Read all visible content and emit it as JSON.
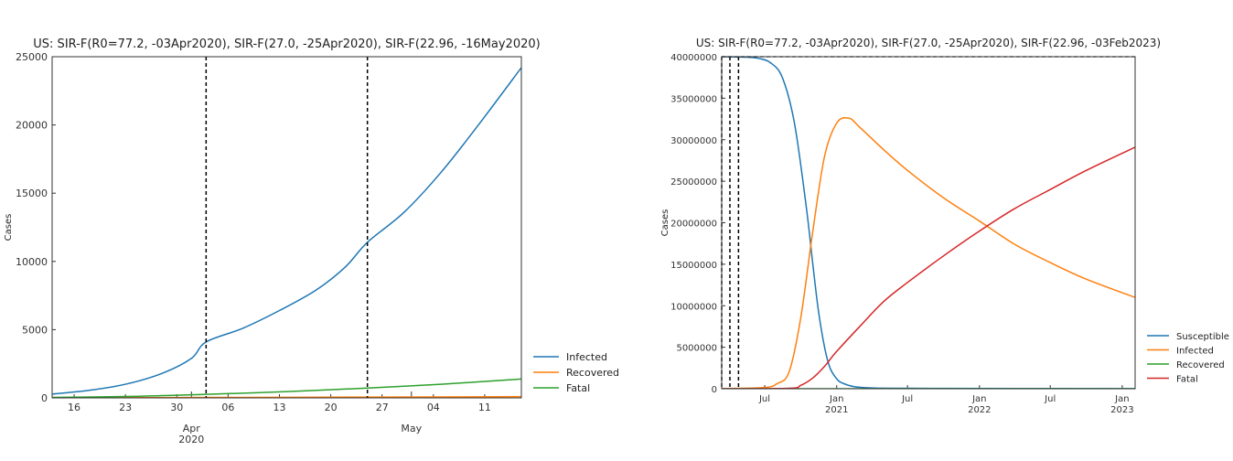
{
  "chart_data": [
    {
      "type": "line",
      "title": "US: SIR-F(R0=77.2, -03Apr2020), SIR-F(27.0, -25Apr2020), SIR-F(22.96, -16May2020)",
      "xlabel": "",
      "ylabel": "Cases",
      "ylim": [
        0,
        25000
      ],
      "y_ticks": [
        0,
        5000,
        10000,
        15000,
        20000,
        25000
      ],
      "y_tick_labels": [
        "0",
        "5000",
        "10000",
        "15000",
        "20000",
        "25000"
      ],
      "x_range": [
        "2020-03-13",
        "2020-05-16"
      ],
      "x_ticks": [
        {
          "date": "2020-03-16",
          "label": "16",
          "sublabel": ""
        },
        {
          "date": "2020-03-23",
          "label": "23",
          "sublabel": ""
        },
        {
          "date": "2020-03-30",
          "label": "30",
          "sublabel": ""
        },
        {
          "date": "2020-04-06",
          "label": "06",
          "sublabel": ""
        },
        {
          "date": "2020-04-13",
          "label": "13",
          "sublabel": ""
        },
        {
          "date": "2020-04-20",
          "label": "20",
          "sublabel": ""
        },
        {
          "date": "2020-04-27",
          "label": "27",
          "sublabel": ""
        },
        {
          "date": "2020-05-04",
          "label": "04",
          "sublabel": ""
        },
        {
          "date": "2020-05-11",
          "label": "11",
          "sublabel": ""
        }
      ],
      "x_month_labels": [
        {
          "date": "2020-04-01",
          "label": "Apr",
          "sublabel": "2020"
        },
        {
          "date": "2020-05-01",
          "label": "May",
          "sublabel": ""
        }
      ],
      "vlines": [
        "2020-04-03",
        "2020-04-25"
      ],
      "hlines": [],
      "grid": false,
      "legend_position": "lower-right-outside",
      "series": [
        {
          "name": "Infected",
          "color": "#1f77b4",
          "x": [
            "2020-03-13",
            "2020-03-18",
            "2020-03-23",
            "2020-03-28",
            "2020-04-01",
            "2020-04-03",
            "2020-04-08",
            "2020-04-13",
            "2020-04-18",
            "2020-04-22",
            "2020-04-25",
            "2020-04-30",
            "2020-05-05",
            "2020-05-10",
            "2020-05-16"
          ],
          "y": [
            280,
            550,
            1000,
            1800,
            2900,
            4100,
            5100,
            6400,
            7900,
            9600,
            11400,
            13600,
            16500,
            19900,
            24200
          ]
        },
        {
          "name": "Recovered",
          "color": "#ff7f0e",
          "x": [
            "2020-03-13",
            "2020-04-03",
            "2020-04-25",
            "2020-05-16"
          ],
          "y": [
            5,
            30,
            60,
            90
          ]
        },
        {
          "name": "Fatal",
          "color": "#2ca02c",
          "x": [
            "2020-03-13",
            "2020-03-25",
            "2020-04-03",
            "2020-04-14",
            "2020-04-25",
            "2020-05-05",
            "2020-05-16"
          ],
          "y": [
            30,
            120,
            260,
            460,
            720,
            1000,
            1380
          ]
        }
      ]
    },
    {
      "type": "line",
      "title": "US: SIR-F(R0=77.2, -03Apr2020), SIR-F(27.0, -25Apr2020), SIR-F(22.96, -03Feb2023)",
      "xlabel": "",
      "ylabel": "Cases",
      "ylim": [
        0,
        40000000
      ],
      "y_ticks": [
        0,
        5000000,
        10000000,
        15000000,
        20000000,
        25000000,
        30000000,
        35000000,
        40000000
      ],
      "y_tick_labels": [
        "0",
        "5000000",
        "10000000",
        "15000000",
        "20000000",
        "25000000",
        "30000000",
        "35000000",
        "40000000"
      ],
      "x_range": [
        "2020-03-13",
        "2023-02-03"
      ],
      "x_ticks": [
        {
          "date": "2020-07-01",
          "label": "Jul",
          "sublabel": ""
        },
        {
          "date": "2021-01-01",
          "label": "Jan",
          "sublabel": "2021"
        },
        {
          "date": "2021-07-01",
          "label": "Jul",
          "sublabel": ""
        },
        {
          "date": "2022-01-01",
          "label": "Jan",
          "sublabel": "2022"
        },
        {
          "date": "2022-07-01",
          "label": "Jul",
          "sublabel": ""
        },
        {
          "date": "2023-01-01",
          "label": "Jan",
          "sublabel": "2023"
        }
      ],
      "x_month_labels": [],
      "vlines": [
        "2020-03-13",
        "2020-04-03",
        "2020-04-25"
      ],
      "hlines": [
        40000000
      ],
      "grid": false,
      "legend_position": "lower-right-outside",
      "series": [
        {
          "name": "Susceptible",
          "color": "#1f77b4",
          "x": [
            "2020-03-13",
            "2020-05-15",
            "2020-06-15",
            "2020-07-15",
            "2020-08-15",
            "2020-09-15",
            "2020-10-15",
            "2020-11-01",
            "2020-11-15",
            "2020-12-01",
            "2020-12-15",
            "2021-01-01",
            "2021-01-15",
            "2021-02-15",
            "2021-04-01",
            "2021-07-01",
            "2023-02-03"
          ],
          "y": [
            40000000,
            39950000,
            39800000,
            39300000,
            37500000,
            32000000,
            22000000,
            15000000,
            9500000,
            5000000,
            2500000,
            1200000,
            700000,
            250000,
            100000,
            50000,
            20000
          ]
        },
        {
          "name": "Infected",
          "color": "#ff7f0e",
          "x": [
            "2020-03-13",
            "2020-07-01",
            "2020-08-01",
            "2020-09-01",
            "2020-10-01",
            "2020-11-01",
            "2020-12-01",
            "2021-01-01",
            "2021-02-01",
            "2021-03-01",
            "2021-05-01",
            "2021-07-01",
            "2021-10-01",
            "2022-01-01",
            "2022-04-01",
            "2022-07-01",
            "2022-10-01",
            "2023-02-03"
          ],
          "y": [
            0,
            150000,
            600000,
            2000000,
            8500000,
            19000000,
            28000000,
            32000000,
            32600000,
            31500000,
            28800000,
            26300000,
            23000000,
            20200000,
            17400000,
            15200000,
            13200000,
            11000000
          ]
        },
        {
          "name": "Recovered",
          "color": "#2ca02c",
          "x": [
            "2020-03-13",
            "2023-02-03"
          ],
          "y": [
            0,
            0
          ]
        },
        {
          "name": "Fatal",
          "color": "#d62728",
          "x": [
            "2020-03-13",
            "2020-09-01",
            "2020-10-01",
            "2020-11-01",
            "2020-12-01",
            "2021-01-01",
            "2021-03-01",
            "2021-05-01",
            "2021-07-01",
            "2021-10-01",
            "2022-01-01",
            "2022-04-01",
            "2022-07-01",
            "2022-10-01",
            "2023-02-03"
          ],
          "y": [
            0,
            50000,
            400000,
            1300000,
            2700000,
            4500000,
            7500000,
            10500000,
            12800000,
            16000000,
            19000000,
            21700000,
            24000000,
            26300000,
            29100000
          ]
        }
      ]
    }
  ]
}
